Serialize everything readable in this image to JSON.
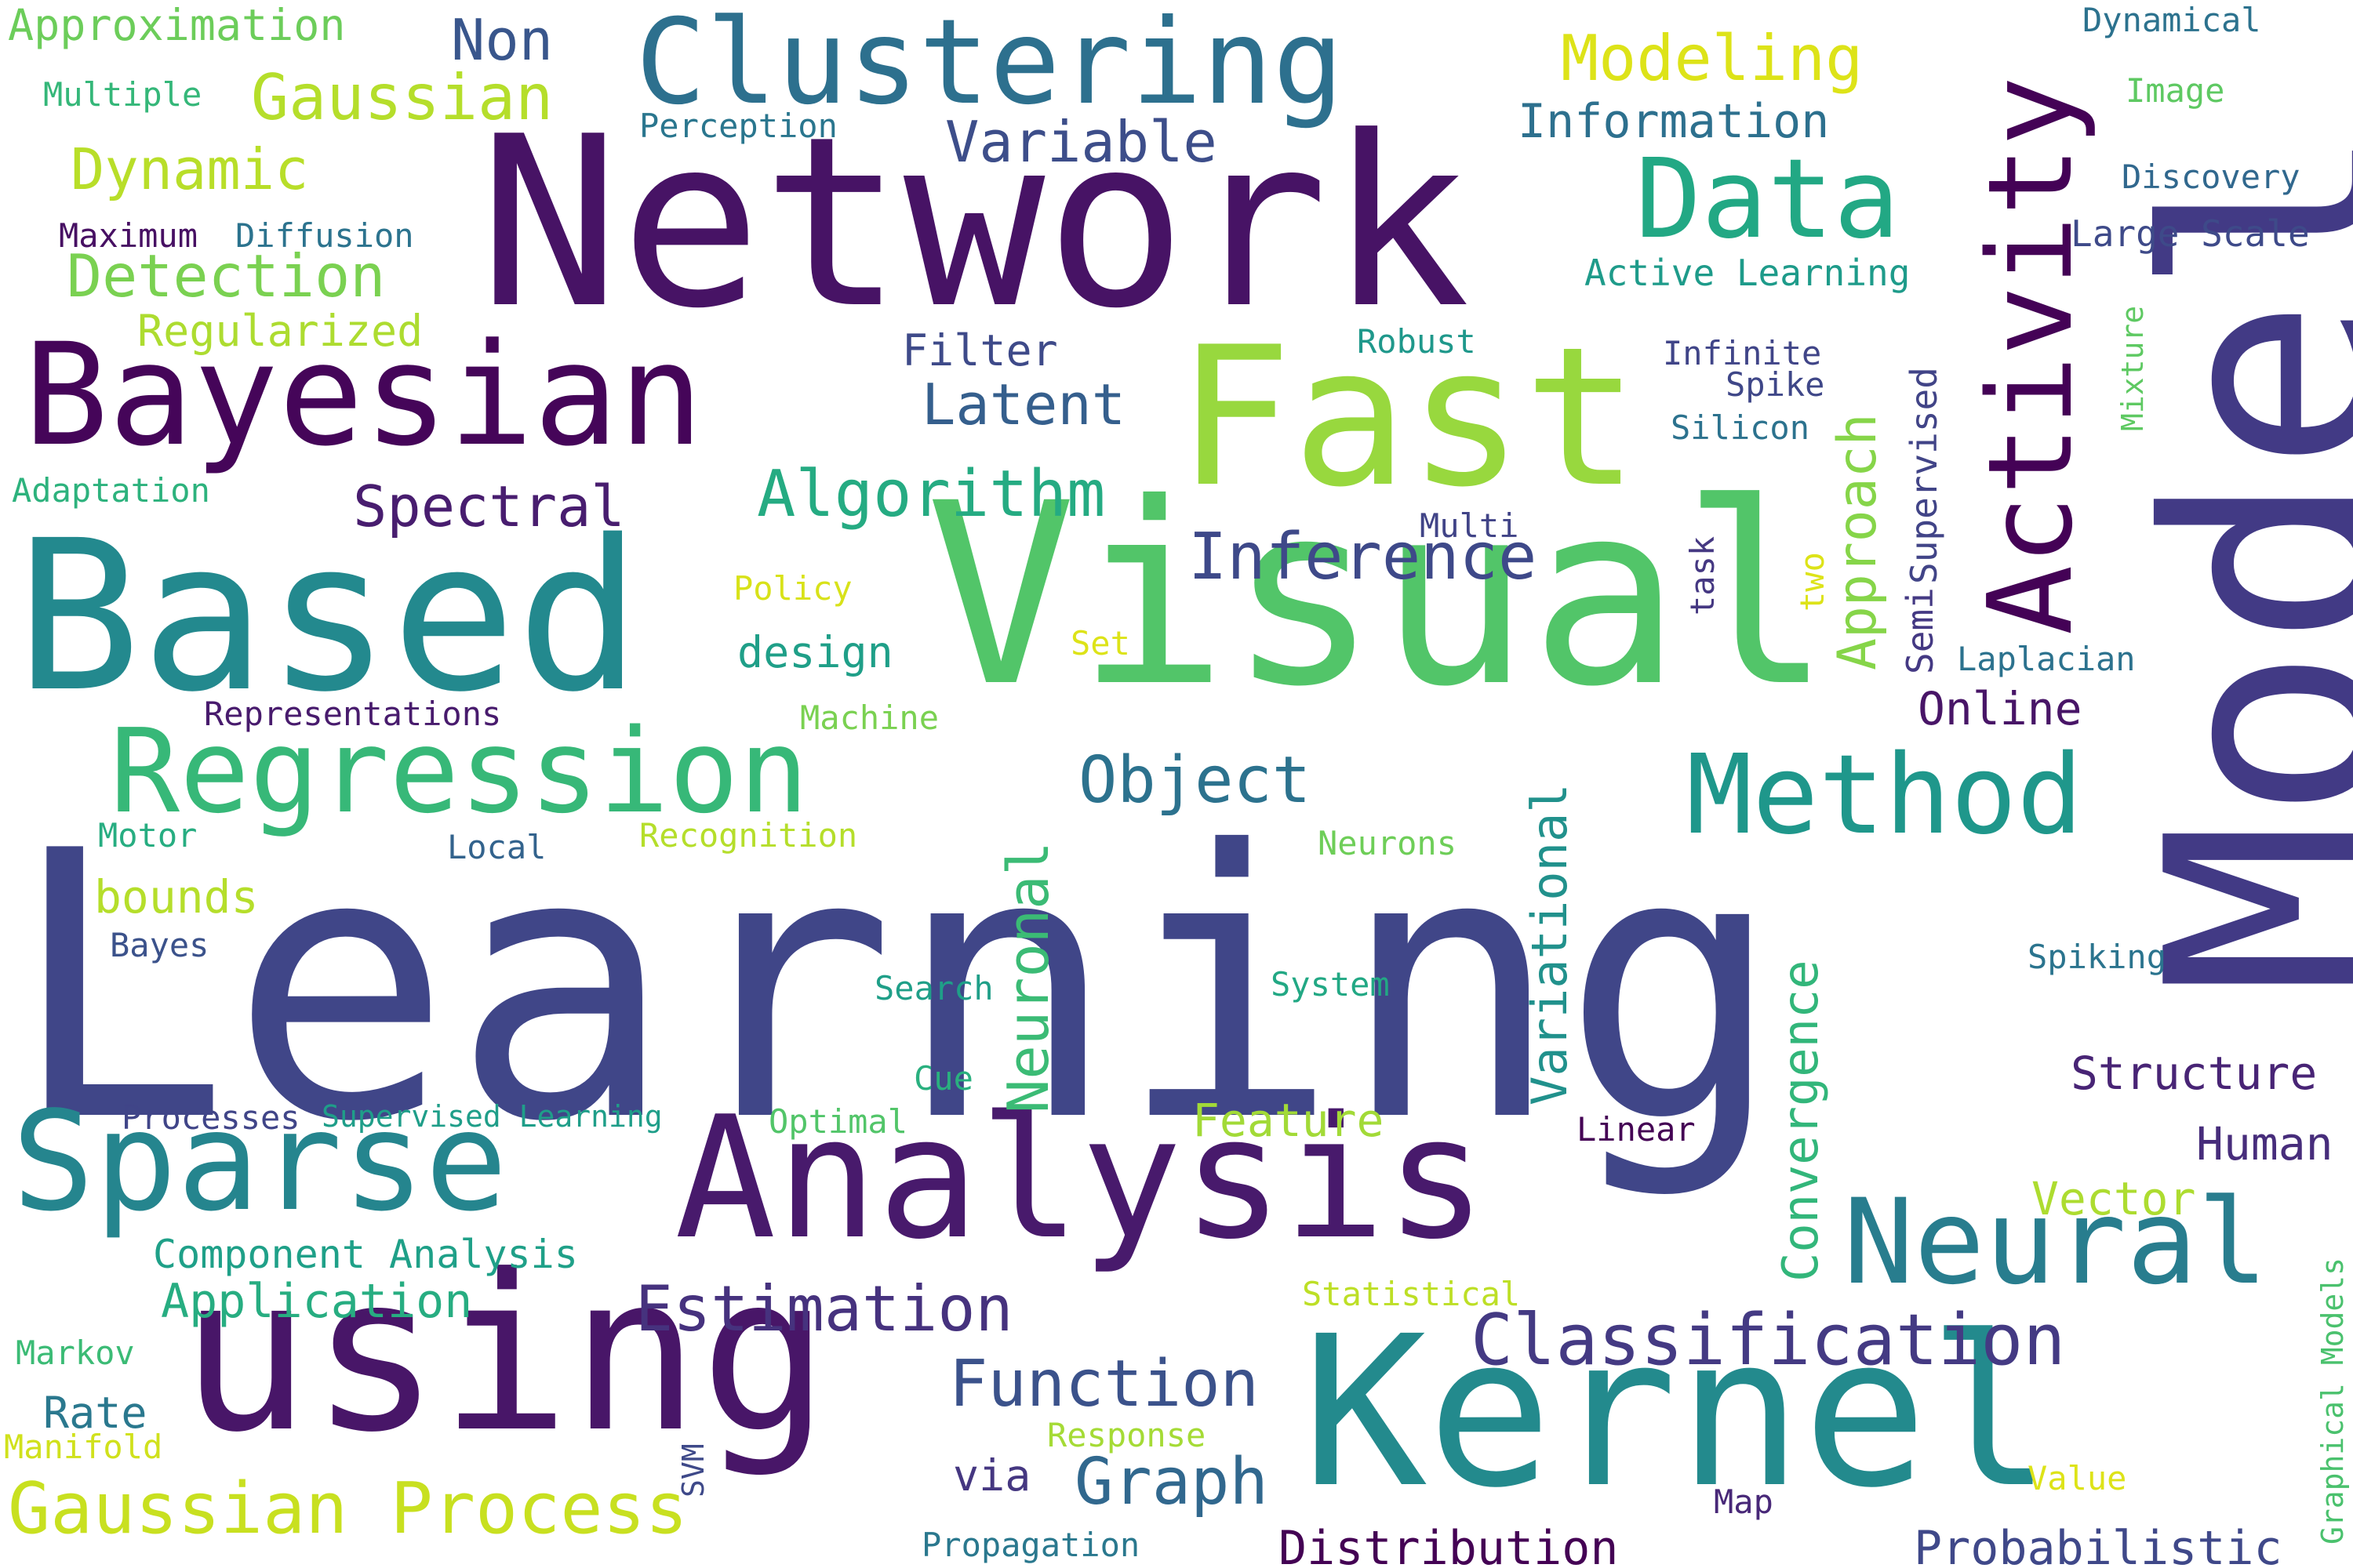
{
  "words": [
    {
      "text": "Learning",
      "color": "#404688"
    },
    {
      "text": "Model",
      "color": "#423a85"
    },
    {
      "text": "Network",
      "color": "#471365"
    },
    {
      "text": "Visual",
      "color": "#52c569"
    },
    {
      "text": "Based",
      "color": "#23898e"
    },
    {
      "text": "Kernel",
      "color": "#238a8d"
    },
    {
      "text": "using",
      "color": "#481668"
    },
    {
      "text": "Analysis",
      "color": "#481a6c"
    },
    {
      "text": "Fast",
      "color": "#98d83e"
    },
    {
      "text": "Bayesian",
      "color": "#450559"
    },
    {
      "text": "Sparse",
      "color": "#25858e"
    },
    {
      "text": "Clustering",
      "color": "#2d708e"
    },
    {
      "text": "Activity",
      "color": "#440256"
    },
    {
      "text": "Regression",
      "color": "#37b878"
    },
    {
      "text": "Method",
      "color": "#1f978b"
    },
    {
      "text": "Neural",
      "color": "#287d8e"
    },
    {
      "text": "Data",
      "color": "#22a884"
    },
    {
      "text": "Classification",
      "color": "#443a83"
    },
    {
      "text": "Gaussian Process",
      "color": "#c8e020"
    },
    {
      "text": "Estimation",
      "color": "#46327e"
    },
    {
      "text": "Distribution",
      "color": "#440154"
    },
    {
      "text": "Probabilistic",
      "color": "#3f4889"
    },
    {
      "text": "Function",
      "color": "#3b528b"
    },
    {
      "text": "Graph",
      "color": "#31688e"
    },
    {
      "text": "Algorithm",
      "color": "#25ab82"
    },
    {
      "text": "Inference",
      "color": "#3e4989"
    },
    {
      "text": "Spectral",
      "color": "#481d6f"
    },
    {
      "text": "Latent",
      "color": "#355f8d"
    },
    {
      "text": "Object",
      "color": "#2c728e"
    },
    {
      "text": "Variable",
      "color": "#3d4e8a"
    },
    {
      "text": "Non",
      "color": "#39568c"
    },
    {
      "text": "Gaussian",
      "color": "#b5de2b"
    },
    {
      "text": "Modeling",
      "color": "#dde318"
    },
    {
      "text": "Information",
      "color": "#2d708e"
    },
    {
      "text": "Detection",
      "color": "#7ad151"
    },
    {
      "text": "Dynamic",
      "color": "#b8de29"
    },
    {
      "text": "Regularized",
      "color": "#addc30"
    },
    {
      "text": "Approximation",
      "color": "#6ccd5a"
    },
    {
      "text": "Application",
      "color": "#27ad81"
    },
    {
      "text": "Neuronal",
      "color": "#3bbb75"
    },
    {
      "text": "Variational",
      "color": "#21918c"
    },
    {
      "text": "Convergence",
      "color": "#32b67a"
    },
    {
      "text": "Approach",
      "color": "#86d549"
    },
    {
      "text": "Structure",
      "color": "#482475"
    },
    {
      "text": "Human",
      "color": "#472d7b"
    },
    {
      "text": "Vector",
      "color": "#addc30"
    },
    {
      "text": "Online",
      "color": "#481567"
    },
    {
      "text": "Feature",
      "color": "#a2da37"
    },
    {
      "text": "Filter",
      "color": "#3e4a89"
    },
    {
      "text": "design",
      "color": "#1f9f88"
    },
    {
      "text": "Active Learning",
      "color": "#1e9b8a"
    },
    {
      "text": "Large Scale",
      "color": "#3e4a89"
    },
    {
      "text": "Discovery",
      "color": "#31688e"
    },
    {
      "text": "bounds",
      "color": "#b5de2b"
    },
    {
      "text": "Rate",
      "color": "#2a788e"
    },
    {
      "text": "via",
      "color": "#453781"
    },
    {
      "text": "Component Analysis",
      "color": "#1fa088"
    },
    {
      "text": "Supervised",
      "color": "#414487"
    },
    {
      "text": "Semi",
      "color": "#443983"
    },
    {
      "text": "Representations",
      "color": "#481b6d"
    },
    {
      "text": "Recognition",
      "color": "#b5de2b"
    },
    {
      "text": "Processes",
      "color": "#404588"
    },
    {
      "text": "Supervised Learning",
      "color": "#1f9e89"
    },
    {
      "text": "Maximum",
      "color": "#471063"
    },
    {
      "text": "Diffusion",
      "color": "#2c738e"
    },
    {
      "text": "Multiple",
      "color": "#35b779"
    },
    {
      "text": "Perception",
      "color": "#2a768e"
    },
    {
      "text": "Adaptation",
      "color": "#2db27d"
    },
    {
      "text": "Policy",
      "color": "#d8e219"
    },
    {
      "text": "Machine",
      "color": "#7ad151"
    },
    {
      "text": "Set",
      "color": "#dde318"
    },
    {
      "text": "Motor",
      "color": "#27ad81"
    },
    {
      "text": "Local",
      "color": "#33638d"
    },
    {
      "text": "Bayes",
      "color": "#3b528b"
    },
    {
      "text": "Search",
      "color": "#1f9f88"
    },
    {
      "text": "Cue",
      "color": "#2ab07f"
    },
    {
      "text": "Optimal",
      "color": "#52c569"
    },
    {
      "text": "System",
      "color": "#22a884"
    },
    {
      "text": "Neurons",
      "color": "#6ece58"
    },
    {
      "text": "Robust",
      "color": "#1f988b"
    },
    {
      "text": "Infinite",
      "color": "#404588"
    },
    {
      "text": "Spike",
      "color": "#3f4788"
    },
    {
      "text": "Silicon",
      "color": "#2c728e"
    },
    {
      "text": "Multi",
      "color": "#414487"
    },
    {
      "text": "task",
      "color": "#453882"
    },
    {
      "text": "two",
      "color": "#dde318"
    },
    {
      "text": "Laplacian",
      "color": "#2c728e"
    },
    {
      "text": "Linear",
      "color": "#440154"
    },
    {
      "text": "Spiking",
      "color": "#2b748e"
    },
    {
      "text": "Markov",
      "color": "#3bbb75"
    },
    {
      "text": "Manifold",
      "color": "#d0e11c"
    },
    {
      "text": "Response",
      "color": "#a5db36"
    },
    {
      "text": "Statistical",
      "color": "#bddf26"
    },
    {
      "text": "SVM",
      "color": "#3e4989"
    },
    {
      "text": "Map",
      "color": "#482878"
    },
    {
      "text": "Value",
      "color": "#dde318"
    },
    {
      "text": "Propagation",
      "color": "#2a788e"
    },
    {
      "text": "Dynamical",
      "color": "#2c728e"
    },
    {
      "text": "Image",
      "color": "#5ec962"
    },
    {
      "text": "Mixture",
      "color": "#5ec962"
    },
    {
      "text": "Graphical Models",
      "color": "#4ac16d"
    }
  ]
}
